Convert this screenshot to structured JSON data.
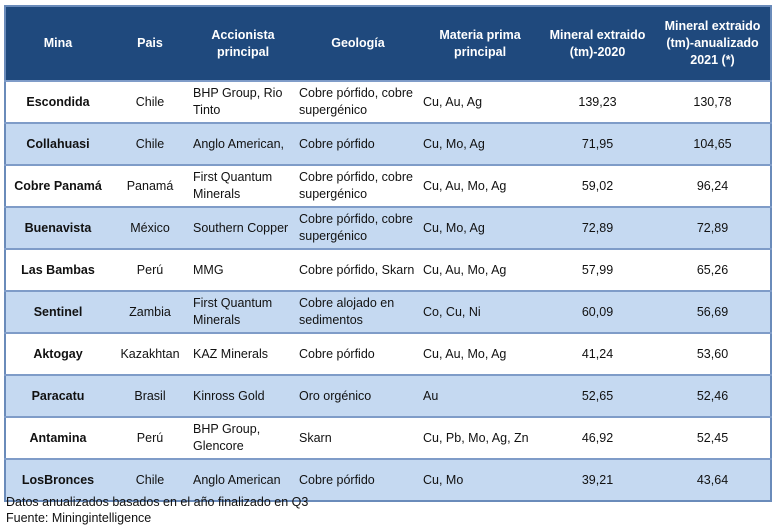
{
  "table": {
    "headers": {
      "mina": "Mina",
      "pais": "Pais",
      "accionista": "Accionista principal",
      "geologia": "Geología",
      "materia": "Materia prima principal",
      "mineral_2020": "Mineral extraido (tm)-2020",
      "mineral_2021": "Mineral extraido (tm)-anualizado 2021 (*)"
    },
    "rows": [
      {
        "mina": "Escondida",
        "pais": "Chile",
        "accionista": "BHP Group, Rio Tinto",
        "geologia": "Cobre pórfido, cobre supergénico",
        "materia": "Cu, Au, Ag",
        "m2020": "139,23",
        "m2021": "130,78"
      },
      {
        "mina": "Collahuasi",
        "pais": "Chile",
        "accionista": "Anglo American,",
        "geologia": "Cobre pórfido",
        "materia": "Cu, Mo, Ag",
        "m2020": "71,95",
        "m2021": "104,65"
      },
      {
        "mina": "Cobre Panamá",
        "pais": "Panamá",
        "accionista": "First Quantum Minerals",
        "geologia": "Cobre pórfido, cobre supergénico",
        "materia": "Cu, Au, Mo, Ag",
        "m2020": "59,02",
        "m2021": "96,24"
      },
      {
        "mina": "Buenavista",
        "pais": "México",
        "accionista": "Southern Copper",
        "geologia": "Cobre pórfido, cobre supergénico",
        "materia": "Cu, Mo, Ag",
        "m2020": "72,89",
        "m2021": "72,89"
      },
      {
        "mina": "Las Bambas",
        "pais": "Perú",
        "accionista": "MMG",
        "geologia": "Cobre pórfido, Skarn",
        "materia": "Cu, Au, Mo, Ag",
        "m2020": "57,99",
        "m2021": "65,26"
      },
      {
        "mina": "Sentinel",
        "pais": "Zambia",
        "accionista": "First Quantum Minerals",
        "geologia": "Cobre alojado en sedimentos",
        "materia": "Co, Cu, Ni",
        "m2020": "60,09",
        "m2021": "56,69"
      },
      {
        "mina": "Aktogay",
        "pais": "Kazakhtan",
        "accionista": "KAZ Minerals",
        "geologia": "Cobre pórfido",
        "materia": "Cu, Au, Mo, Ag",
        "m2020": "41,24",
        "m2021": "53,60"
      },
      {
        "mina": "Paracatu",
        "pais": "Brasil",
        "accionista": "Kinross Gold",
        "geologia": "Oro orgénico",
        "materia": "Au",
        "m2020": "52,65",
        "m2021": "52,46"
      },
      {
        "mina": "Antamina",
        "pais": "Perú",
        "accionista": "BHP Group, Glencore",
        "geologia": "Skarn",
        "materia": "Cu, Pb, Mo, Ag, Zn",
        "m2020": "46,92",
        "m2021": "52,45"
      },
      {
        "mina": "LosBronces",
        "pais": "Chile",
        "accionista": "Anglo American",
        "geologia": "Cobre pórfido",
        "materia": "Cu, Mo",
        "m2020": "39,21",
        "m2021": "43,64"
      }
    ]
  },
  "footer": {
    "note": "Datos anualizados basados en el año finalizado en Q3",
    "source": "Fuente: Miningintelligence"
  },
  "colors": {
    "header_bg": "#1f497d",
    "band_bg": "#c5d9f1",
    "border": "#7f9cc8"
  }
}
